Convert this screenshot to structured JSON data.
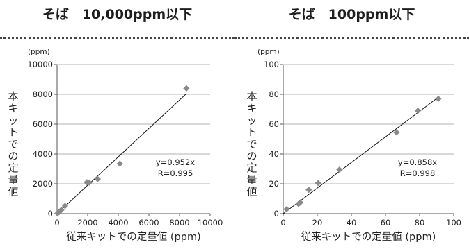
{
  "chart_data": [
    {
      "type": "scatter",
      "title": "そば　10,000ppm以下",
      "unit_label": "(ppm)",
      "xlabel": "従来キットでの定量値 (ppm)",
      "ylabel": "本キットでの定量値",
      "xlim": [
        0,
        10000
      ],
      "ylim": [
        0,
        10000
      ],
      "x_ticks": [
        0,
        2000,
        4000,
        6000,
        8000,
        10000
      ],
      "y_ticks": [
        0,
        2000,
        4000,
        6000,
        8000,
        10000
      ],
      "grid": "horizontal",
      "marker_color": "#8a8a8a",
      "points": [
        {
          "x": 30,
          "y": 20
        },
        {
          "x": 150,
          "y": 120
        },
        {
          "x": 280,
          "y": 250
        },
        {
          "x": 520,
          "y": 520
        },
        {
          "x": 1950,
          "y": 2100
        },
        {
          "x": 2100,
          "y": 2080
        },
        {
          "x": 2650,
          "y": 2320
        },
        {
          "x": 4100,
          "y": 3350
        },
        {
          "x": 8450,
          "y": 8400
        }
      ],
      "trendline": {
        "slope": 0.952,
        "x_range": [
          0,
          8450
        ]
      },
      "annotations": [
        "y=0.952x",
        "R=0.995"
      ]
    },
    {
      "type": "scatter",
      "title": "そば　100ppm以下",
      "unit_label": "(ppm)",
      "xlabel": "従来キットでの定量値 (ppm)",
      "ylabel": "本キットでの定量値",
      "xlim": [
        0,
        100
      ],
      "ylim": [
        0,
        100
      ],
      "x_ticks": [
        0,
        20,
        40,
        60,
        80,
        100
      ],
      "y_ticks": [
        0,
        20,
        40,
        60,
        80,
        100
      ],
      "grid": "horizontal",
      "marker_color": "#8a8a8a",
      "points": [
        {
          "x": 2,
          "y": 3
        },
        {
          "x": 9,
          "y": 6.5
        },
        {
          "x": 10,
          "y": 7.5
        },
        {
          "x": 15,
          "y": 16
        },
        {
          "x": 20.5,
          "y": 20.5
        },
        {
          "x": 33,
          "y": 29.5
        },
        {
          "x": 66.5,
          "y": 54.5
        },
        {
          "x": 79,
          "y": 69
        },
        {
          "x": 91,
          "y": 77
        }
      ],
      "trendline": {
        "slope": 0.858,
        "x_range": [
          0,
          91
        ]
      },
      "annotations": [
        "y=0.858x",
        "R=0.998"
      ]
    }
  ]
}
